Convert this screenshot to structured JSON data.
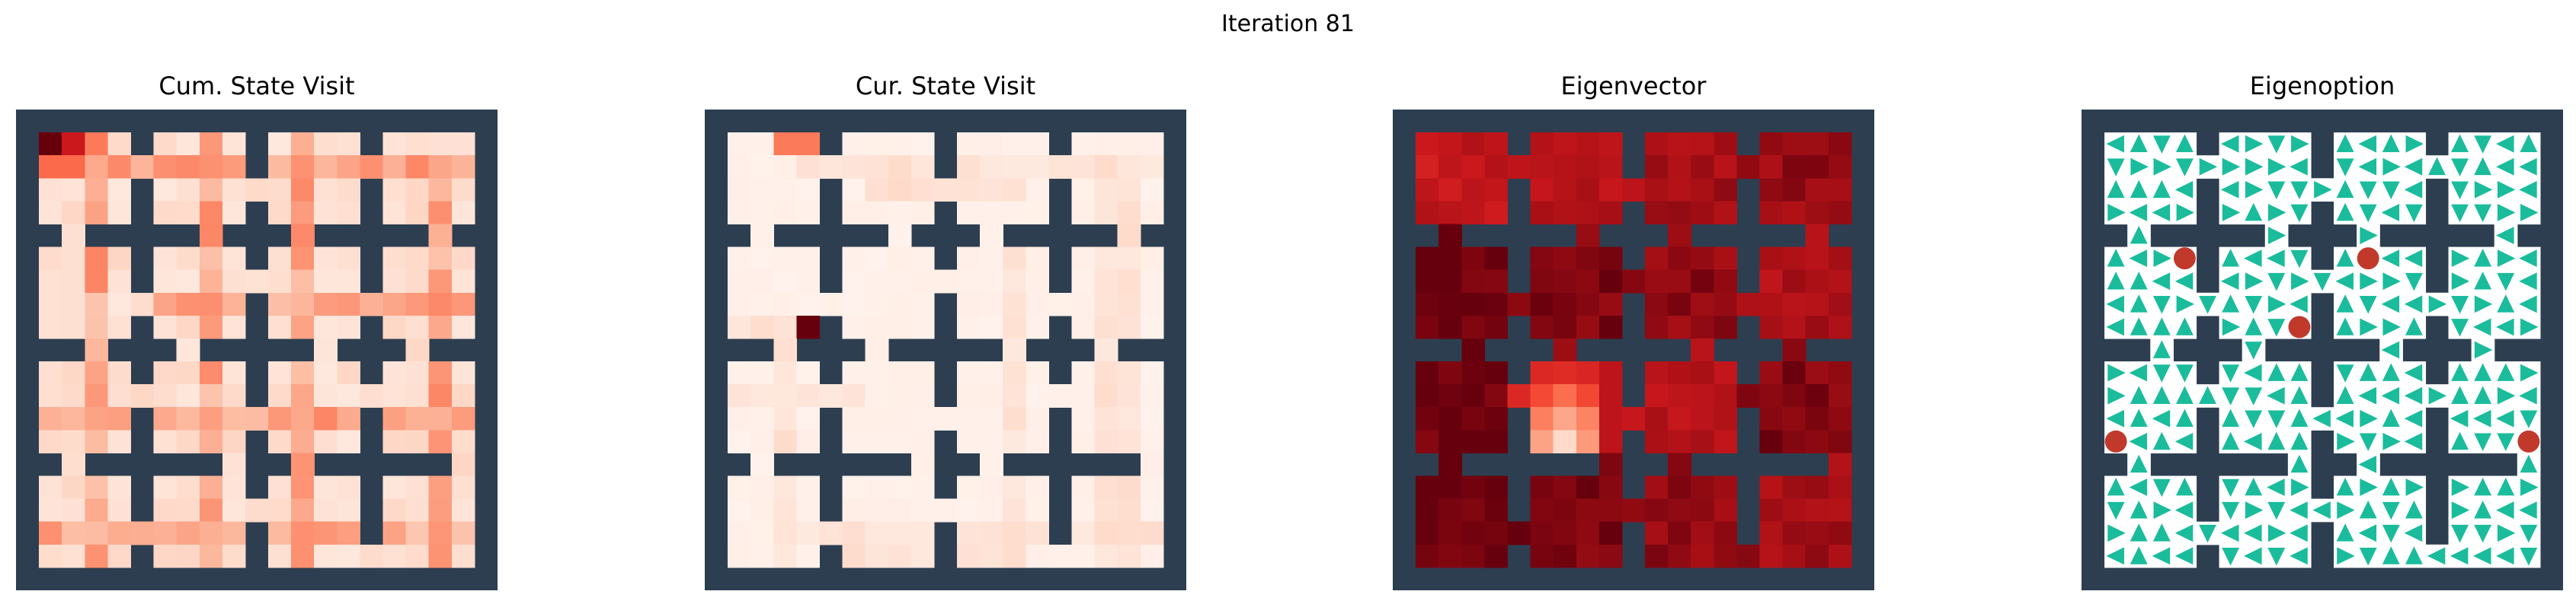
{
  "figure": {
    "suptitle": "Iteration 81"
  },
  "colors": {
    "wall": "#2d3e50",
    "reds_low": "#fff5f0",
    "reds_high": "#67000d",
    "arrow": "#1abc9c",
    "subgoal": "#c0392b"
  },
  "chart_data": [
    {
      "type": "heatmap",
      "title": "Cum. State Visit",
      "colormap": "Reds",
      "grid_size": 21,
      "value_range": [
        0,
        1
      ],
      "room_cells": 4,
      "room_origins": [
        1,
        6,
        11,
        16
      ],
      "doorways": [
        [
          5,
          2
        ],
        [
          10,
          3
        ],
        [
          15,
          2
        ],
        [
          5,
          8
        ],
        [
          10,
          7
        ],
        [
          15,
          9
        ],
        [
          5,
          12
        ],
        [
          10,
          13
        ],
        [
          15,
          12
        ],
        [
          5,
          18
        ],
        [
          10,
          17
        ],
        [
          15,
          19
        ],
        [
          2,
          5
        ],
        [
          3,
          10
        ],
        [
          2,
          15
        ],
        [
          8,
          5
        ],
        [
          7,
          10
        ],
        [
          8,
          15
        ],
        [
          12,
          5
        ],
        [
          13,
          10
        ],
        [
          12,
          15
        ],
        [
          18,
          5
        ],
        [
          17,
          10
        ],
        [
          19,
          15
        ]
      ],
      "hotspots": [
        {
          "row": 1,
          "col": 1,
          "value": 1.0
        },
        {
          "row": 1,
          "col": 2,
          "value": 0.75
        },
        {
          "row": 1,
          "col": 3,
          "value": 0.45
        },
        {
          "row": 2,
          "col": 1,
          "value": 0.5
        },
        {
          "row": 2,
          "col": 2,
          "value": 0.5
        }
      ],
      "trail_value": 0.35,
      "base_value": 0.08
    },
    {
      "type": "heatmap",
      "title": "Cur. State Visit",
      "colormap": "Reds",
      "grid_size": 21,
      "value_range": [
        0,
        1
      ],
      "hotspots": [
        {
          "row": 9,
          "col": 4,
          "value": 1.0
        },
        {
          "row": 1,
          "col": 3,
          "value": 0.45
        },
        {
          "row": 1,
          "col": 4,
          "value": 0.45
        },
        {
          "row": 10,
          "col": 4,
          "value": 0.4
        }
      ],
      "trail_value": 0.12,
      "base_value": 0.02
    },
    {
      "type": "heatmap",
      "title": "Eigenvector",
      "colormap": "Reds",
      "grid_size": 21,
      "value_range": [
        0,
        1
      ],
      "room_levels": [
        [
          0.78,
          0.82,
          0.86,
          0.9
        ],
        [
          1.0,
          0.96,
          0.92,
          0.84
        ],
        [
          1.0,
          0.45,
          0.82,
          0.95
        ],
        [
          1.0,
          0.96,
          0.92,
          0.88
        ]
      ],
      "low_spot": {
        "row": 14,
        "col": 7,
        "value": 0.12
      }
    },
    {
      "type": "quiver",
      "title": "Eigenoption",
      "grid_size": 21,
      "subgoals": [
        [
          6,
          4
        ],
        [
          6,
          12
        ],
        [
          9,
          9
        ],
        [
          14,
          1
        ],
        [
          14,
          19
        ]
      ]
    }
  ]
}
